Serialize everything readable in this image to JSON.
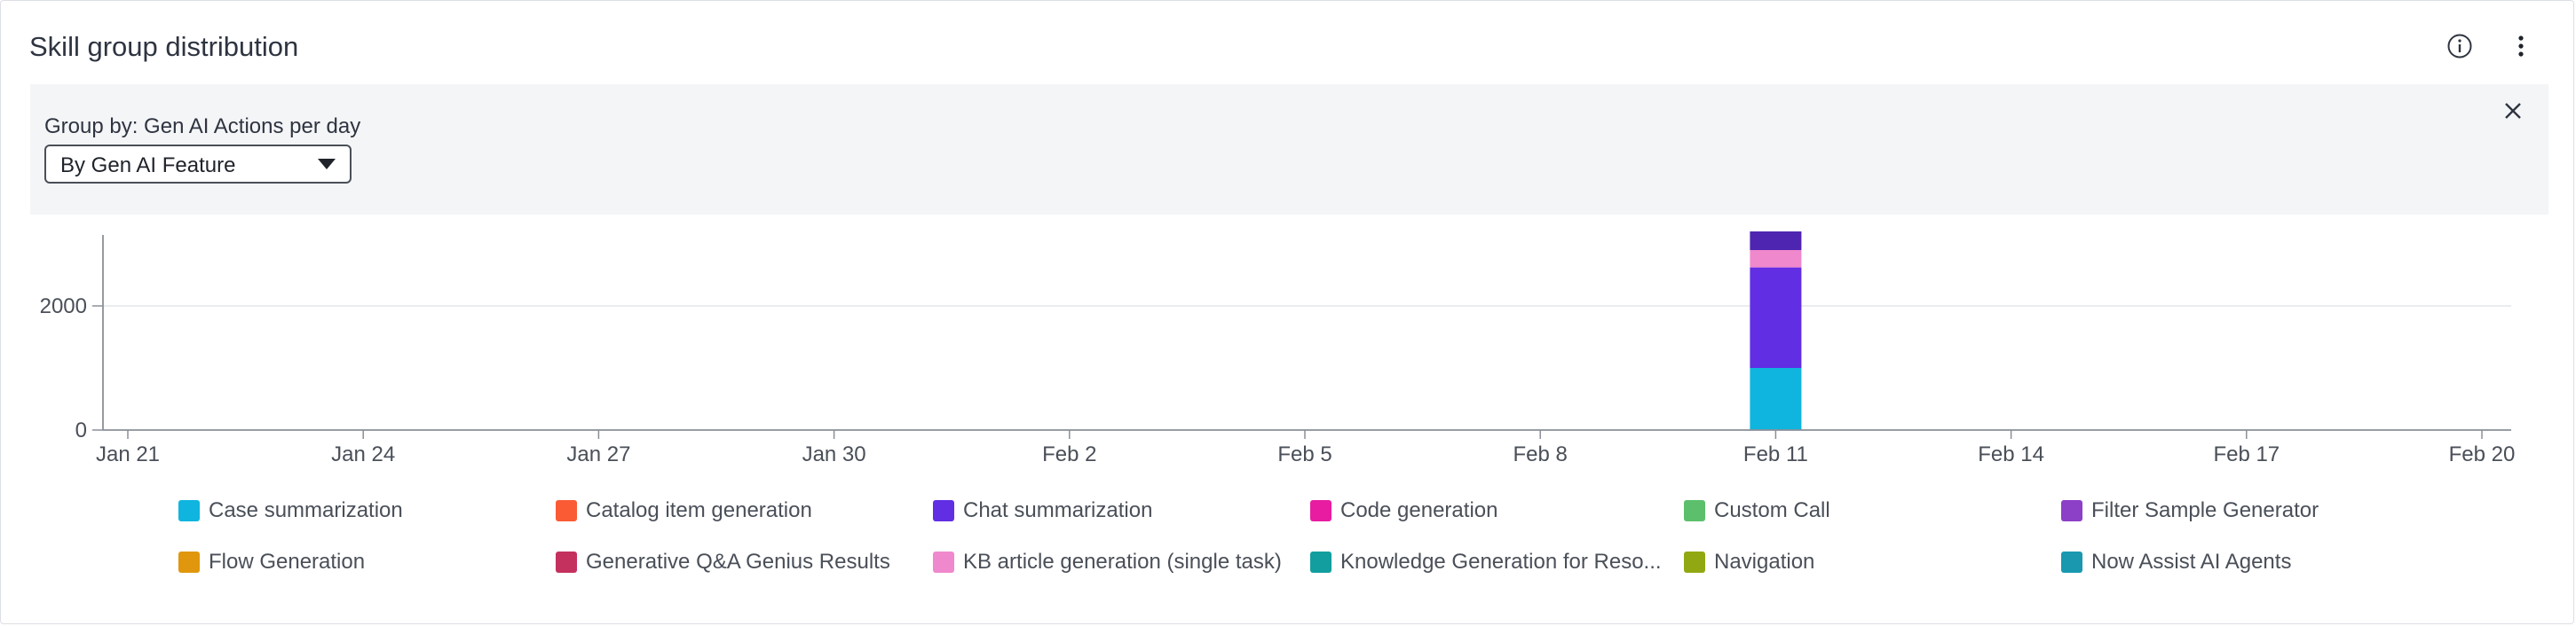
{
  "widget": {
    "title": "Skill group distribution",
    "info_icon": "info-circle-icon",
    "more_icon": "vertical-ellipsis-icon",
    "close_icon": "close-icon"
  },
  "filter": {
    "group_by_label": "Group by: Gen AI Actions per day",
    "selected": "By Gen AI Feature",
    "caret_icon": "caret-down-icon"
  },
  "chart_data": {
    "type": "bar",
    "stacked": true,
    "x_ticks": [
      "Jan 21",
      "Jan 24",
      "Jan 27",
      "Jan 30",
      "Feb 2",
      "Feb 5",
      "Feb 8",
      "Feb 11",
      "Feb 14",
      "Feb 17",
      "Feb 20"
    ],
    "y_ticks": [
      "0",
      "2000"
    ],
    "ylim": [
      0,
      3200
    ],
    "grid": true,
    "legend_position": "bottom",
    "bar_date": "Feb 11",
    "series": [
      {
        "name": "Case summarization",
        "color": "#0fb5de",
        "value": 1000
      },
      {
        "name": "Catalog item generation",
        "color": "#fa5b35",
        "value": 0
      },
      {
        "name": "Chat summarization",
        "color": "#612ee3",
        "value": 1620
      },
      {
        "name": "Code generation",
        "color": "#e81ca1",
        "value": 0
      },
      {
        "name": "Custom Call",
        "color": "#5cbf6c",
        "value": 0
      },
      {
        "name": "Filter Sample Generator",
        "color": "#8c3fc7",
        "value": 0
      },
      {
        "name": "Flow Generation",
        "color": "#e0970d",
        "value": 0
      },
      {
        "name": "Generative Q&A Genius Results",
        "color": "#c4315e",
        "value": 0
      },
      {
        "name": "KB article generation (single task)",
        "color": "#ef88cc",
        "value": 280
      },
      {
        "name": "Knowledge Generation for Reso...",
        "color": "#129e9e",
        "value": 0
      },
      {
        "name": "Navigation",
        "color": "#92a812",
        "value": 0
      },
      {
        "name": "Now Assist AI Agents",
        "color": "#1998b0",
        "value": 0
      }
    ],
    "top_segment": {
      "color": "#4e25b0",
      "value": 300
    }
  }
}
